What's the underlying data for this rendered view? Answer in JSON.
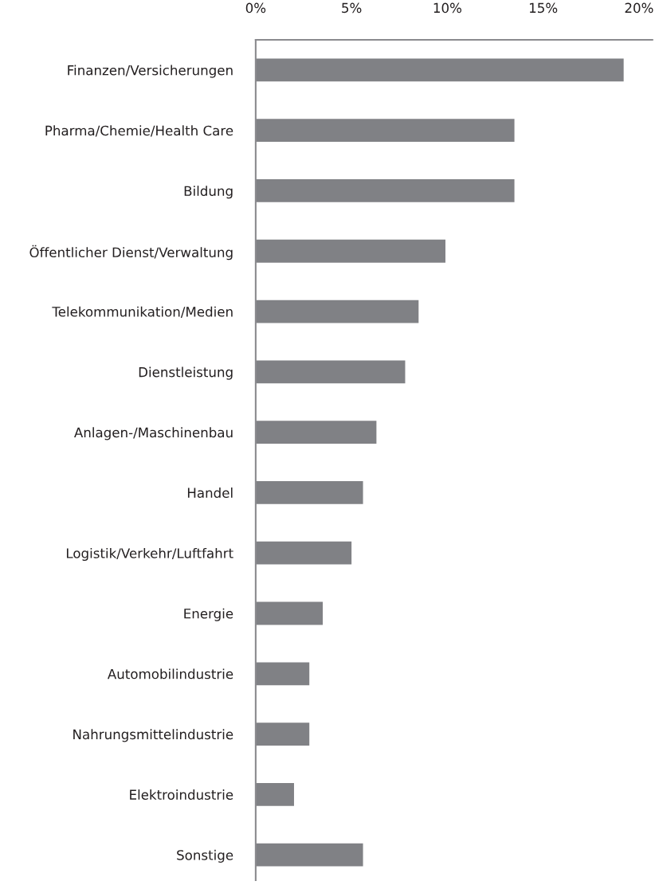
{
  "chart_data": {
    "type": "bar",
    "orientation": "horizontal",
    "categories": [
      "Finanzen/Versicherungen",
      "Pharma/Chemie/Health Care",
      "Bildung",
      "Öffentlicher Dienst/Verwaltung",
      "Telekommunikation/Medien",
      "Dienstleistung",
      "Anlagen-/Maschinenbau",
      "Handel",
      "Logistik/Verkehr/Luftfahrt",
      "Energie",
      "Automobilindustrie",
      "Nahrungsmittelindustrie",
      "Elektroindustrie",
      "Sonstige"
    ],
    "values": [
      19.2,
      13.5,
      13.5,
      9.9,
      8.5,
      7.8,
      6.3,
      5.6,
      5.0,
      3.5,
      2.8,
      2.8,
      2.0,
      5.6
    ],
    "color": "#808185",
    "xlim": [
      0,
      20.7
    ],
    "xticks": [
      {
        "value": 0,
        "label": "0%"
      },
      {
        "value": 5,
        "label": "5%"
      },
      {
        "value": 10,
        "label": "10%"
      },
      {
        "value": 15,
        "label": "15%"
      },
      {
        "value": 20,
        "label": "20%"
      }
    ],
    "grid": false,
    "legend": false
  }
}
